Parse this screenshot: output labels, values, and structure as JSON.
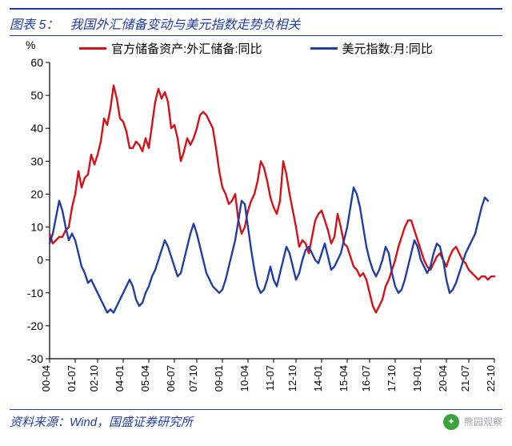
{
  "header": {
    "chart_number": "图表 5：",
    "title": "我国外汇储备变动与美元指数走势负相关"
  },
  "chart": {
    "type": "line",
    "y_unit": "%",
    "ylim": [
      -30,
      60
    ],
    "ytick_step": 10,
    "yticks": [
      -30,
      -20,
      -10,
      0,
      10,
      20,
      30,
      40,
      50,
      60
    ],
    "x_categories": [
      "00-04",
      "01-07",
      "02-10",
      "04-01",
      "05-04",
      "06-07",
      "07-10",
      "09-01",
      "10-04",
      "11-07",
      "12-10",
      "14-01",
      "15-04",
      "16-07",
      "17-10",
      "19-01",
      "20-04",
      "21-07",
      "22-10"
    ],
    "axis_color": "#000000",
    "grid": false,
    "background_color": "#ffffff",
    "line_width": 2.4,
    "label_fontsize": 14,
    "xlabel_fontsize": 13,
    "series": [
      {
        "name": "官方储备资产:外汇储备:同比",
        "color": "#d51117",
        "values": [
          8,
          5,
          6,
          7,
          7,
          9,
          10,
          16,
          20,
          27,
          22,
          25,
          26,
          32,
          29,
          32,
          36,
          43,
          41,
          46,
          53,
          49,
          43,
          42,
          39,
          34,
          34,
          36,
          35,
          33,
          37,
          34,
          41,
          48,
          52,
          49,
          51,
          48,
          40,
          41,
          37,
          30,
          33,
          37,
          35,
          37,
          40,
          44,
          45,
          44,
          42,
          40,
          34,
          27,
          22,
          20,
          17,
          18,
          20,
          12,
          8,
          10,
          15,
          18,
          20,
          24,
          30,
          28,
          24,
          19,
          16,
          14,
          18,
          30,
          26,
          20,
          15,
          10,
          4,
          6,
          5,
          2,
          7,
          12,
          14,
          15,
          12,
          9,
          5,
          7,
          14,
          10,
          5,
          4,
          1,
          -2,
          -3,
          -5,
          -4,
          -6,
          -10,
          -14,
          -16,
          -14,
          -12,
          -8,
          -6,
          -3,
          0,
          4,
          7,
          10,
          12,
          12,
          9,
          6,
          3,
          0,
          -2,
          -3,
          -1,
          1,
          2,
          0,
          -2,
          1,
          3,
          4,
          2,
          0,
          -1,
          -3,
          -4,
          -5,
          -6,
          -5,
          -5,
          -6,
          -5,
          -5
        ]
      },
      {
        "name": "美元指数:月:同比",
        "color": "#1f3ea8",
        "values": [
          5,
          8,
          13,
          18,
          15,
          10,
          6,
          8,
          6,
          2,
          -2,
          -4,
          -7,
          -6,
          -8,
          -10,
          -12,
          -14,
          -16,
          -15,
          -16,
          -14,
          -12,
          -10,
          -8,
          -6,
          -8,
          -12,
          -14,
          -13,
          -10,
          -8,
          -5,
          -3,
          0,
          3,
          6,
          4,
          1,
          -2,
          -5,
          -4,
          0,
          4,
          8,
          11,
          8,
          4,
          0,
          -4,
          -6,
          -8,
          -9,
          -10,
          -9,
          -6,
          -2,
          2,
          6,
          12,
          18,
          17,
          10,
          3,
          -3,
          -8,
          -10,
          -9,
          -6,
          -2,
          -6,
          -8,
          -4,
          0,
          4,
          2,
          -2,
          -6,
          -4,
          0,
          3,
          4,
          2,
          0,
          -1,
          2,
          5,
          1,
          -3,
          -2,
          0,
          2,
          6,
          10,
          16,
          22,
          20,
          16,
          10,
          4,
          0,
          -3,
          -5,
          -3,
          0,
          4,
          2,
          -4,
          -8,
          -10,
          -9,
          -6,
          -2,
          2,
          6,
          4,
          0,
          -2,
          -4,
          -2,
          2,
          5,
          4,
          0,
          -6,
          -10,
          -9,
          -7,
          -4,
          -1,
          2,
          4,
          6,
          8,
          12,
          16,
          19,
          18
        ]
      }
    ]
  },
  "source": {
    "label": "资料来源：",
    "text": "Wind，国盛证券研究所"
  },
  "watermark": {
    "text": "熊园观察"
  }
}
